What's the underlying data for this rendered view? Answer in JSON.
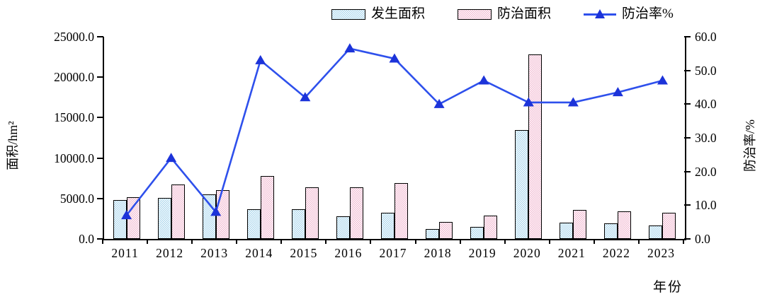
{
  "legend": {
    "items": [
      {
        "label": "发生面积",
        "swatch": "blue-pattern-bar"
      },
      {
        "label": "防治面积",
        "swatch": "pink-pattern-bar"
      },
      {
        "label": "防治率%",
        "swatch": "blue-line-triangle-marker"
      }
    ]
  },
  "axes": {
    "left_title": "面积/hm²",
    "right_title": "防治率/%",
    "x_title": "年份",
    "left_ticks": [
      "25000.0",
      "20000.0",
      "15000.0",
      "10000.0",
      "5000.0",
      "0.0"
    ],
    "right_ticks": [
      "60.0",
      "50.0",
      "40.0",
      "30.0",
      "20.0",
      "10.0",
      "0.0"
    ]
  },
  "colors": {
    "bar_occurrence_fill": "#a9d6ec",
    "bar_control_fill": "#f2b9d1",
    "bar_border": "#000000",
    "rate_line": "#2e50ec",
    "rate_marker": "#1c33d9"
  },
  "chart_data": {
    "type": "bar",
    "subtype": "grouped-bars-with-secondary-axis-line",
    "title": "",
    "categories": [
      "2011",
      "2012",
      "2013",
      "2014",
      "2015",
      "2016",
      "2017",
      "2018",
      "2019",
      "2020",
      "2021",
      "2022",
      "2023"
    ],
    "series": [
      {
        "name": "发生面积",
        "type": "bar",
        "axis": "left",
        "values": [
          4800,
          5100,
          5500,
          3700,
          3700,
          2800,
          3200,
          1200,
          1500,
          13500,
          2000,
          1900,
          1700
        ]
      },
      {
        "name": "防治面积",
        "type": "bar",
        "axis": "left",
        "values": [
          5200,
          6700,
          6000,
          7800,
          6400,
          6400,
          6900,
          2100,
          2900,
          22800,
          3600,
          3400,
          3200
        ]
      },
      {
        "name": "防治率%",
        "type": "line",
        "axis": "right",
        "values": [
          7.0,
          24.0,
          8.0,
          53.0,
          42.0,
          56.5,
          53.5,
          40.0,
          47.0,
          40.5,
          40.5,
          43.5,
          47.0
        ]
      }
    ],
    "xlabel": "年份",
    "ylabel_left": "面积/hm²",
    "ylabel_right": "防治率/%",
    "ylim_left": [
      0,
      25000
    ],
    "ytick_step_left": 5000,
    "ylim_right": [
      0,
      60
    ],
    "ytick_step_right": 10,
    "grid": false,
    "legend_position": "top"
  }
}
